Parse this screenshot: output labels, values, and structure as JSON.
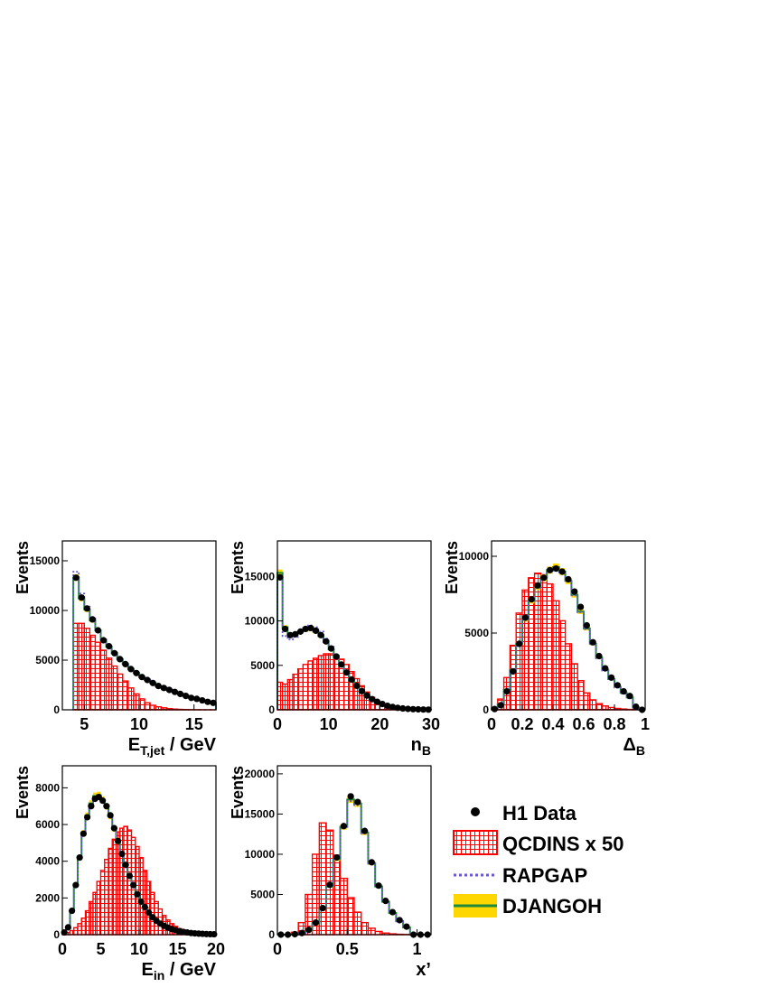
{
  "colors": {
    "data": "#000000",
    "qcdins": "#ff0000",
    "rapgap": "#6a5acd",
    "djangoh_line": "#1f8a3a",
    "djangoh_band": "#ffd700"
  },
  "legend": {
    "items": [
      {
        "key": "data",
        "label": "H1 Data"
      },
      {
        "key": "qcdins",
        "label": "QCDINS x 50"
      },
      {
        "key": "rapgap",
        "label": "RAPGAP"
      },
      {
        "key": "djangoh",
        "label": "DJANGOH"
      }
    ]
  },
  "chart_data": [
    {
      "id": "et",
      "type": "histogram",
      "ylabel": "Events",
      "xlabel_main": "E",
      "xlabel_sub": "T,jet",
      "xlabel_rest": " / GeV",
      "xlim": [
        3,
        17
      ],
      "ylim": [
        0,
        17000
      ],
      "xticks": [
        5,
        10,
        15
      ],
      "xtick_labels": [
        "5",
        "10",
        "15"
      ],
      "yticks": [
        0,
        5000,
        10000,
        15000
      ],
      "ytick_labels": [
        "0",
        "5000",
        "10000",
        "15000"
      ],
      "bin_start": 4,
      "bin_width": 0.5,
      "data": [
        13300,
        11300,
        10200,
        9100,
        8000,
        7000,
        6400,
        5700,
        5100,
        4600,
        4100,
        3700,
        3300,
        3000,
        2700,
        2400,
        2200,
        2000,
        1800,
        1600,
        1400,
        1200,
        1100,
        950,
        800,
        700
      ],
      "djangoh": [
        13300,
        11200,
        10100,
        9000,
        8000,
        7000,
        6350,
        5700,
        5100,
        4600,
        4100,
        3700,
        3300,
        3000,
        2700,
        2400,
        2200,
        2000,
        1800,
        1600,
        1400,
        1200,
        1100,
        950,
        800,
        700
      ],
      "rapgap": [
        13900,
        11700,
        10400,
        9200,
        8100,
        7100,
        6400,
        5750,
        5150,
        4650,
        4150,
        3750,
        3350,
        3050,
        2750,
        2450,
        2250,
        2050,
        1850,
        1650,
        1450,
        1250,
        1150,
        1000,
        850,
        750
      ],
      "qcdins": [
        8700,
        8700,
        8200,
        7500,
        6800,
        6000,
        5200,
        4400,
        3600,
        2900,
        2200,
        1600,
        1100,
        700,
        450,
        300,
        200,
        120,
        70,
        40,
        25,
        15,
        10,
        5,
        3,
        2
      ]
    },
    {
      "id": "nb",
      "type": "histogram",
      "ylabel": "Events",
      "xlabel_main": "n",
      "xlabel_sub": "B",
      "xlabel_rest": "",
      "xlim": [
        0,
        30
      ],
      "ylim": [
        0,
        19000
      ],
      "xticks": [
        0,
        10,
        20,
        30
      ],
      "xtick_labels": [
        "0",
        "10",
        "20",
        "30"
      ],
      "yticks": [
        0,
        5000,
        10000,
        15000
      ],
      "ytick_labels": [
        "0",
        "5000",
        "10000",
        "15000"
      ],
      "bin_start": 0,
      "bin_width": 1,
      "data": [
        14900,
        9100,
        8400,
        8500,
        8800,
        9100,
        9200,
        8900,
        8400,
        7700,
        6900,
        6000,
        5100,
        4200,
        3400,
        2700,
        2100,
        1600,
        1200,
        900,
        650,
        450,
        320,
        220,
        150,
        100,
        70,
        50,
        30,
        20
      ],
      "djangoh": [
        15400,
        9300,
        8500,
        8500,
        8800,
        9000,
        9100,
        8800,
        8300,
        7600,
        6800,
        5900,
        5000,
        4100,
        3300,
        2600,
        2000,
        1500,
        1100,
        800,
        600,
        400,
        280,
        200,
        130,
        90,
        60,
        40,
        25,
        15
      ],
      "rapgap": [
        14700,
        8300,
        7900,
        8200,
        8700,
        9200,
        9500,
        9300,
        8800,
        8000,
        7100,
        6100,
        5100,
        4200,
        3300,
        2600,
        2000,
        1500,
        1100,
        800,
        600,
        400,
        280,
        200,
        130,
        90,
        60,
        40,
        25,
        15
      ],
      "qcdins": [
        3100,
        2900,
        3400,
        4000,
        4600,
        5100,
        5500,
        5800,
        6100,
        6300,
        6300,
        6100,
        5700,
        5100,
        4300,
        3500,
        2700,
        2000,
        1400,
        900,
        550,
        320,
        180,
        90,
        45,
        20,
        10,
        5,
        2,
        1
      ]
    },
    {
      "id": "delta",
      "type": "histogram",
      "ylabel": "Events",
      "xlabel_main": "Δ",
      "xlabel_sub": "B",
      "xlabel_rest": "",
      "xlim": [
        0,
        1
      ],
      "ylim": [
        0,
        11000
      ],
      "xticks": [
        0,
        0.2,
        0.4,
        0.6,
        0.8,
        1
      ],
      "xtick_labels": [
        "0",
        "0.2",
        "0.4",
        "0.6",
        "0.8",
        "1"
      ],
      "yticks": [
        0,
        5000,
        10000
      ],
      "ytick_labels": [
        "0",
        "5000",
        "10000"
      ],
      "bin_start": 0,
      "bin_width": 0.04,
      "data": [
        50,
        300,
        1200,
        2500,
        4300,
        6000,
        7200,
        8100,
        8600,
        9100,
        9200,
        9000,
        8500,
        7700,
        6700,
        5500,
        4400,
        3500,
        2700,
        2100,
        1600,
        1200,
        900,
        200,
        0
      ],
      "djangoh": [
        60,
        350,
        1300,
        2600,
        4300,
        5900,
        7100,
        8000,
        8600,
        9100,
        9300,
        9000,
        8400,
        7500,
        6400,
        5300,
        4300,
        3400,
        2600,
        2000,
        1500,
        1100,
        800,
        150,
        0
      ],
      "rapgap": [
        50,
        330,
        1250,
        2550,
        4250,
        5850,
        7050,
        7950,
        8550,
        9050,
        9250,
        8950,
        8350,
        7450,
        6350,
        5250,
        4250,
        3350,
        2550,
        1950,
        1450,
        1050,
        750,
        140,
        0
      ],
      "qcdins": [
        150,
        700,
        2100,
        4200,
        6300,
        7800,
        8600,
        8900,
        8800,
        8200,
        7100,
        5800,
        4300,
        3000,
        1900,
        1100,
        650,
        400,
        250,
        150,
        90,
        50,
        25,
        10,
        0
      ]
    },
    {
      "id": "ein",
      "type": "histogram",
      "ylabel": "Events",
      "xlabel_main": "E",
      "xlabel_sub": "in",
      "xlabel_rest": " / GeV",
      "xlim": [
        0,
        20
      ],
      "ylim": [
        0,
        9200
      ],
      "xticks": [
        0,
        5,
        10,
        15,
        20
      ],
      "xtick_labels": [
        "0",
        "5",
        "10",
        "15",
        "20"
      ],
      "yticks": [
        0,
        2000,
        4000,
        6000,
        8000
      ],
      "ytick_labels": [
        "0",
        "2000",
        "4000",
        "6000",
        "8000"
      ],
      "bin_start": 0,
      "bin_width": 0.5,
      "data": [
        120,
        400,
        1300,
        2700,
        4200,
        5500,
        6400,
        7000,
        7400,
        7500,
        7300,
        7000,
        6500,
        5800,
        5100,
        4400,
        3800,
        3200,
        2700,
        2200,
        1800,
        1500,
        1200,
        950,
        750,
        600,
        480,
        380,
        300,
        240,
        190,
        150,
        120,
        90,
        70,
        55,
        45,
        35,
        28,
        22
      ],
      "djangoh": [
        130,
        420,
        1350,
        2750,
        4250,
        5550,
        6500,
        7150,
        7550,
        7600,
        7350,
        7000,
        6450,
        5750,
        5050,
        4350,
        3750,
        3150,
        2650,
        2150,
        1750,
        1450,
        1150,
        900,
        720,
        580,
        460,
        360,
        280,
        220,
        175,
        140,
        110,
        85,
        65,
        50,
        40,
        32,
        25,
        20
      ],
      "rapgap": [
        120,
        400,
        1300,
        2650,
        4150,
        5450,
        6400,
        7050,
        7450,
        7550,
        7300,
        6950,
        6400,
        5700,
        5000,
        4300,
        3700,
        3100,
        2600,
        2100,
        1700,
        1400,
        1100,
        880,
        700,
        560,
        450,
        350,
        270,
        210,
        170,
        135,
        105,
        80,
        62,
        48,
        38,
        30,
        24,
        19
      ],
      "qcdins": [
        50,
        120,
        220,
        380,
        600,
        900,
        1300,
        1800,
        2300,
        2900,
        3500,
        4100,
        4700,
        5200,
        5600,
        5800,
        5900,
        5700,
        5300,
        4800,
        4200,
        3500,
        2900,
        2300,
        1800,
        1400,
        1050,
        800,
        600,
        450,
        330,
        250,
        180,
        130,
        95,
        70,
        50,
        36,
        26,
        18
      ]
    },
    {
      "id": "xprime",
      "type": "histogram",
      "ylabel": "Events",
      "xlabel_main": "x’",
      "xlabel_sub": "",
      "xlabel_rest": "",
      "xlim": [
        0,
        1.1
      ],
      "ylim": [
        0,
        21000
      ],
      "xticks": [
        0,
        0.5,
        1
      ],
      "xtick_labels": [
        "0",
        "0.5",
        "1"
      ],
      "yticks": [
        0,
        5000,
        10000,
        15000,
        20000
      ],
      "ytick_labels": [
        "0",
        "5000",
        "10000",
        "15000",
        "20000"
      ],
      "bin_start": 0,
      "bin_width": 0.05,
      "data": [
        0,
        0,
        60,
        200,
        600,
        1500,
        3300,
        6200,
        9600,
        13500,
        17200,
        16500,
        12900,
        9000,
        6100,
        4200,
        2800,
        1800,
        1000,
        0,
        0,
        0
      ],
      "djangoh": [
        0,
        0,
        50,
        180,
        550,
        1400,
        3200,
        6000,
        9400,
        13400,
        16800,
        16300,
        12700,
        8900,
        6000,
        4100,
        2700,
        1700,
        900,
        0,
        0,
        0
      ],
      "rapgap": [
        0,
        0,
        55,
        190,
        570,
        1450,
        3250,
        6100,
        9500,
        13300,
        16600,
        16100,
        12600,
        8800,
        5900,
        4050,
        2650,
        1650,
        880,
        0,
        0,
        0
      ],
      "qcdins": [
        0,
        20,
        300,
        1500,
        5000,
        10000,
        13900,
        13000,
        9900,
        7000,
        4600,
        2800,
        1500,
        800,
        400,
        200,
        100,
        50,
        20,
        0,
        0,
        0
      ]
    }
  ]
}
